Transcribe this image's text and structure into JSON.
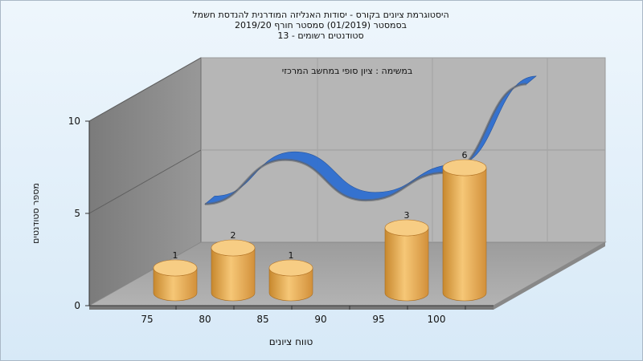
{
  "chart_data": {
    "type": "bar",
    "title_lines": [
      "היסטוגרמת ציונים בקורס - יסודות האנליזה המודרנית להנדסת חשמל",
      "בסמסטר  (01/2019)  סמסטר חורף 2019/20",
      "סטודנטים רשומים - 13"
    ],
    "subtitle": "במשימה : ציון סופי במחשב המרכזי",
    "xlabel": "טווח ציונים",
    "ylabel": "מספר סטודנטים",
    "categories": [
      "75",
      "80",
      "85",
      "90",
      "95",
      "100"
    ],
    "values": [
      1,
      2,
      1,
      0,
      3,
      6
    ],
    "value_labels": [
      "1",
      "2",
      "1",
      "",
      "3",
      "6"
    ],
    "y_ticks": [
      "0",
      "5",
      "10"
    ],
    "ylim": [
      0,
      10
    ],
    "curve": [
      2.2,
      4.6,
      2.4,
      3.9,
      8.7
    ],
    "colors": {
      "bar": "#f0b45a",
      "bar_top": "#f7cd84",
      "curve": "#2f6fd1",
      "curve_back": "#666666",
      "back_wall": "#b5b5b5",
      "side_wall": "#8a8a8a",
      "floor": "#a4a4a4"
    }
  }
}
